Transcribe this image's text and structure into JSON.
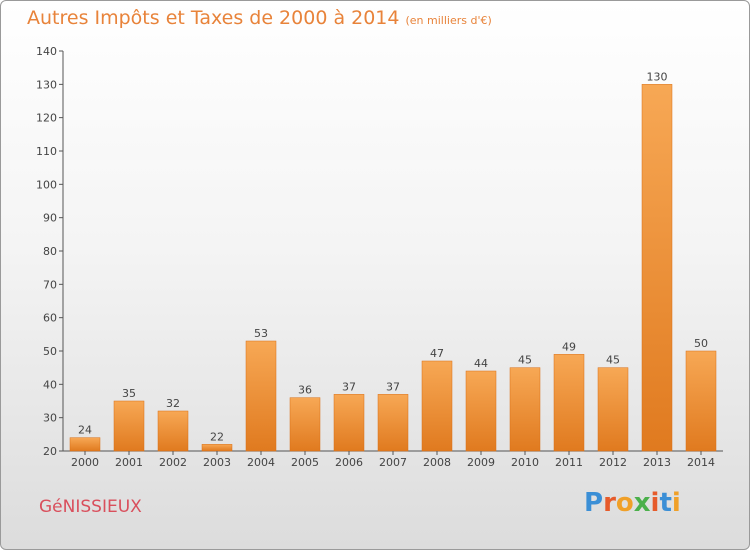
{
  "title": {
    "main": "Autres Impôts et Taxes de 2000 à 2014",
    "unit": "(en milliers d'€)"
  },
  "town": "GéNISSIEUX",
  "logo": {
    "text": "Proxiti",
    "letters": [
      "P",
      "r",
      "o",
      "x",
      "i",
      "t",
      "i"
    ],
    "colors": [
      "#3b8fd6",
      "#e65b2b",
      "#f0a028",
      "#4bb04b",
      "#e65b2b",
      "#3b8fd6",
      "#f0a028"
    ]
  },
  "colors": {
    "bar_top": "#f7a855",
    "bar_bottom": "#e07a1f",
    "bar_edge": "#d86f16",
    "axis": "#555555",
    "text": "#444444"
  },
  "chart_data": {
    "type": "bar",
    "categories": [
      "2000",
      "2001",
      "2002",
      "2003",
      "2004",
      "2005",
      "2006",
      "2007",
      "2008",
      "2009",
      "2010",
      "2011",
      "2012",
      "2013",
      "2014"
    ],
    "values": [
      24,
      35,
      32,
      22,
      53,
      36,
      37,
      37,
      47,
      44,
      45,
      49,
      45,
      130,
      50
    ],
    "ylim": [
      20,
      140
    ],
    "yticks": [
      20,
      30,
      40,
      50,
      60,
      70,
      80,
      90,
      100,
      110,
      120,
      130,
      140
    ],
    "xlabel": "",
    "ylabel": "",
    "grid": false
  }
}
